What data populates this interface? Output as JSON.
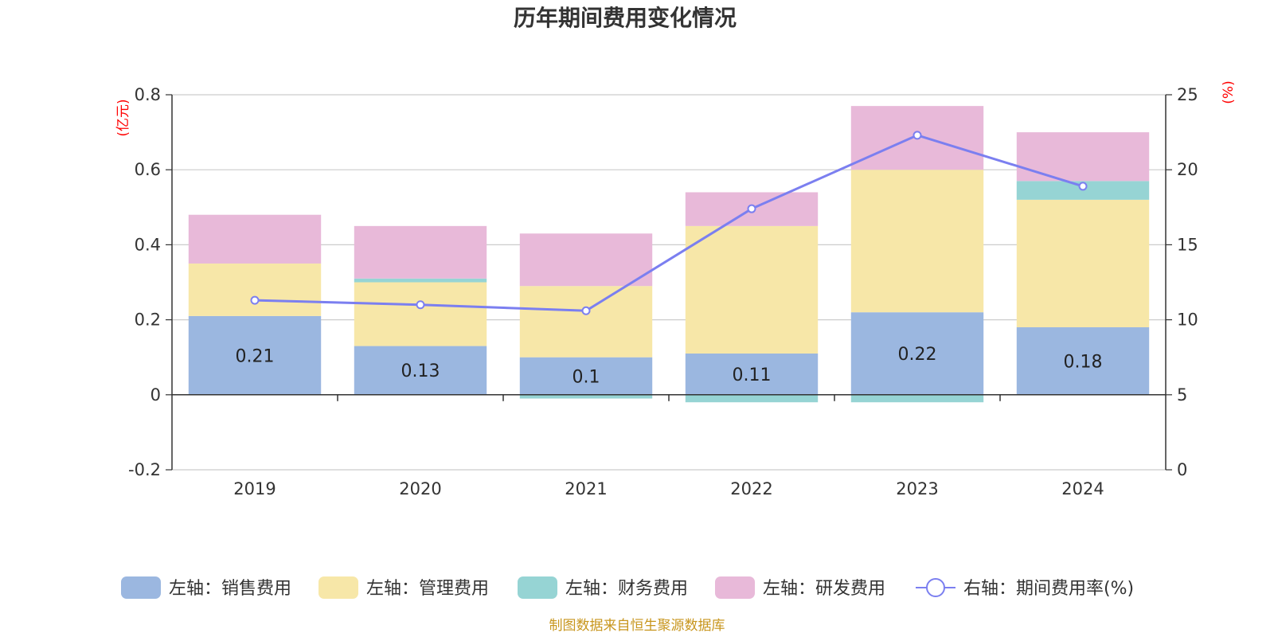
{
  "chart_data": {
    "type": "bar",
    "title": "历年期间费用变化情况",
    "categories": [
      "2019",
      "2020",
      "2021",
      "2022",
      "2023",
      "2024"
    ],
    "left_axis": {
      "unit": "(亿元)",
      "ylim": [
        -0.2,
        0.8
      ],
      "ticks": [
        "0.8",
        "0.6",
        "0.4",
        "0.2",
        "0",
        "-0.2"
      ],
      "tick_values": [
        0.8,
        0.6,
        0.4,
        0.2,
        0,
        -0.2
      ]
    },
    "right_axis": {
      "unit": "(%)",
      "ylim": [
        0,
        25
      ],
      "ticks": [
        "25",
        "20",
        "15",
        "10",
        "5",
        "0"
      ],
      "tick_values": [
        25,
        20,
        15,
        10,
        5,
        0
      ]
    },
    "series": [
      {
        "name": "左轴：销售费用",
        "kind": "bar",
        "color": "#9bb7e0",
        "values": [
          0.21,
          0.13,
          0.1,
          0.11,
          0.22,
          0.18
        ],
        "labels": [
          "0.21",
          "0.13",
          "0.1",
          "0.11",
          "0.22",
          "0.18"
        ]
      },
      {
        "name": "左轴：管理费用",
        "kind": "bar",
        "color": "#f7e7a8",
        "values": [
          0.14,
          0.17,
          0.19,
          0.34,
          0.38,
          0.34
        ]
      },
      {
        "name": "左轴：财务费用",
        "kind": "bar",
        "color": "#96d4d4",
        "values": [
          0.0,
          0.01,
          -0.01,
          -0.02,
          -0.02,
          0.05
        ]
      },
      {
        "name": "左轴：研发费用",
        "kind": "bar",
        "color": "#e8b9d9",
        "values": [
          0.13,
          0.14,
          0.14,
          0.09,
          0.17,
          0.13
        ]
      },
      {
        "name": "右轴：期间费用率(%)",
        "kind": "line",
        "color": "#7b7ff0",
        "values": [
          11.3,
          11.0,
          10.6,
          17.4,
          22.3,
          18.9
        ]
      }
    ],
    "legend_position": "bottom"
  },
  "source": "制图数据来自恒生聚源数据库"
}
